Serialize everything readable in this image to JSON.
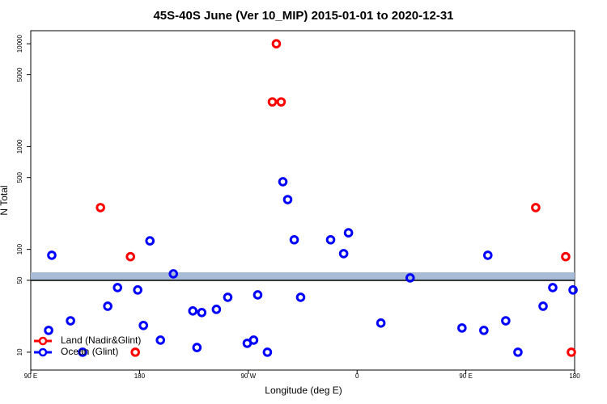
{
  "chart_data": {
    "type": "scatter",
    "title": "45S-40S June (Ver 10_MIP)   2015-01-01 to 2020-12-31",
    "x_label": "Longitude (deg E)",
    "y_label": "N Total",
    "log_y": true,
    "legend": "bottom-left",
    "xlim": [
      90,
      540
    ],
    "ylim": [
      6.7,
      13400
    ],
    "xticks": [
      {
        "value": 90,
        "label": "90 E"
      },
      {
        "value": 180,
        "label": "180"
      },
      {
        "value": 270,
        "label": "90 W"
      },
      {
        "value": 360,
        "label": "0"
      },
      {
        "value": 450,
        "label": "90 E"
      },
      {
        "value": 540,
        "label": "180"
      }
    ],
    "yticks": [
      10,
      50,
      100,
      500,
      1000,
      5000,
      10000
    ],
    "series": [
      {
        "name": "Land (Nadir&Glint)",
        "color": "#ff0000",
        "x": [
          147.7,
          172.5,
          176.5,
          293.2,
          289.9,
          297.2,
          507.8,
          532.6,
          537.3
        ],
        "values": [
          255,
          85,
          10,
          10000,
          2720,
          2720,
          255,
          85,
          10
        ]
      },
      {
        "name": "Ocean (Glint)",
        "color": "#0000ff",
        "x": [
          107.4,
          104.8,
          122.9,
          132.9,
          153.7,
          161.8,
          178.5,
          183.2,
          188.6,
          197.3,
          208.0,
          224.1,
          227.5,
          231.5,
          243.6,
          253.0,
          269.1,
          274.4,
          277.8,
          285.8,
          298.6,
          302.6,
          308.0,
          313.3,
          338.1,
          348.9,
          352.9,
          379.7,
          403.9,
          446.8,
          464.9,
          468.2,
          483.0,
          493.1,
          513.9,
          521.9,
          538.7
        ],
        "values": [
          87.7,
          16.3,
          20.2,
          10,
          28.0,
          42.5,
          40.3,
          18.2,
          121,
          13.1,
          57.8,
          25.2,
          11.1,
          24.3,
          26.1,
          34.2,
          12.2,
          13.1,
          36.1,
          10,
          455,
          305,
          124,
          34.2,
          124,
          90.9,
          145,
          19.2,
          52.8,
          17.2,
          16.3,
          87.7,
          20.2,
          10,
          28.0,
          42.5,
          40.3
        ]
      }
    ]
  }
}
